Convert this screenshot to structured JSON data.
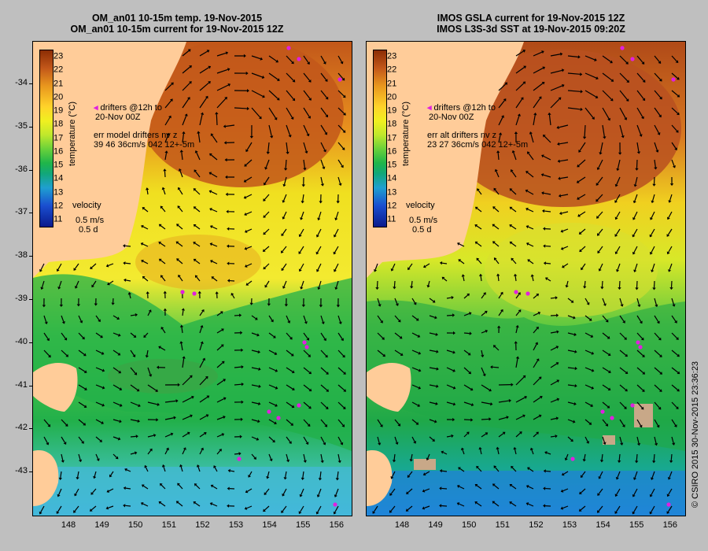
{
  "left_panel": {
    "title_line1": "OM_an01 10-15m temp. 19-Nov-2015",
    "title_line2": "OM_an01 10-15m current for 19-Nov-2015 12Z",
    "colorbar_label": "temperature (°C)",
    "drifters_line1": "drifters @12h to",
    "drifters_line2": "20-Nov 00Z",
    "err_line1": "err model drifters nv z",
    "err_line2": "39 46 36cm/s 042 12+-5m",
    "velocity_label": "velocity",
    "velocity_speed": "0.5 m/s",
    "velocity_time": "0.5 d"
  },
  "right_panel": {
    "title_line1": "IMOS GSLA current for 19-Nov-2015 12Z",
    "title_line2": "IMOS L3S-3d SST at 19-Nov-2015 09:20Z",
    "colorbar_label": "temperature (°C)",
    "drifters_line1": "drifters @12h to",
    "drifters_line2": "20-Nov 00Z",
    "err_line1": "err alt drifters nv z",
    "err_line2": "23 27 36cm/s 042 12+-5m",
    "velocity_label": "velocity",
    "velocity_speed": "0.5 m/s",
    "velocity_time": "0.5 d"
  },
  "colorbar_ticks": [
    "23",
    "22",
    "21",
    "20",
    "19",
    "18",
    "17",
    "16",
    "15",
    "14",
    "13",
    "12",
    "11"
  ],
  "latitudes": [
    "-34",
    "-35",
    "-36",
    "-37",
    "-38",
    "-39",
    "-40",
    "-41",
    "-42",
    "-43"
  ],
  "longitudes": [
    "148",
    "149",
    "150",
    "151",
    "152",
    "153",
    "154",
    "155",
    "156"
  ],
  "copyright": "© CSIRO 2015   30-Nov-2015 23:36:23",
  "colors": {
    "land": "#ffcc99",
    "warm": "#c2571a",
    "mid": "#f0e020",
    "cool": "#22b04a",
    "cold": "#40c0d0",
    "drifter": "#e020e0",
    "cloud": "#c8a888"
  }
}
